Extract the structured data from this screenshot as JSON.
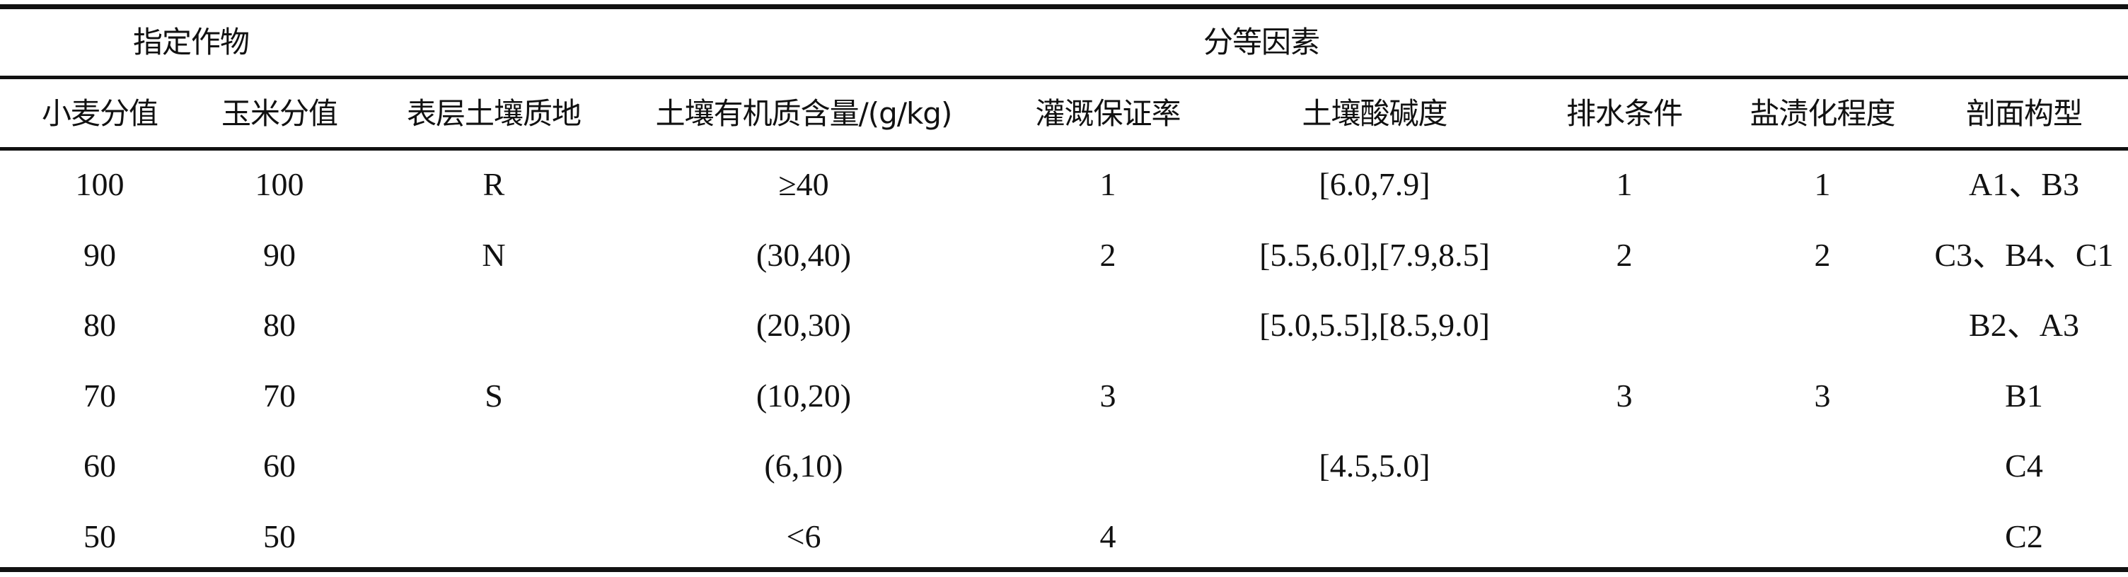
{
  "group_headers": [
    "指定作物",
    "分等因素"
  ],
  "columns": [
    "小麦分值",
    "玉米分值",
    "表层土壤质地",
    "土壤有机质含量/(g/kg)",
    "灌溉保证率",
    "土壤酸碱度",
    "排水条件",
    "盐渍化程度",
    "剖面构型"
  ],
  "rows": [
    [
      "100",
      "100",
      "R",
      "≥40",
      "1",
      "[6.0,7.9]",
      "1",
      "1",
      "A1、B3"
    ],
    [
      "90",
      "90",
      "N",
      "(30,40)",
      "2",
      "[5.5,6.0],[7.9,8.5]",
      "2",
      "2",
      "C3、B4、C1"
    ],
    [
      "80",
      "80",
      "",
      "(20,30)",
      "",
      "[5.0,5.5],[8.5,9.0]",
      "",
      "",
      "B2、A3"
    ],
    [
      "70",
      "70",
      "S",
      "(10,20)",
      "3",
      "",
      "3",
      "3",
      "B1"
    ],
    [
      "60",
      "60",
      "",
      "(6,10)",
      "",
      "[4.5,5.0]",
      "",
      "",
      "C4"
    ],
    [
      "50",
      "50",
      "",
      "<6",
      "4",
      "",
      "",
      "",
      "C2"
    ]
  ]
}
